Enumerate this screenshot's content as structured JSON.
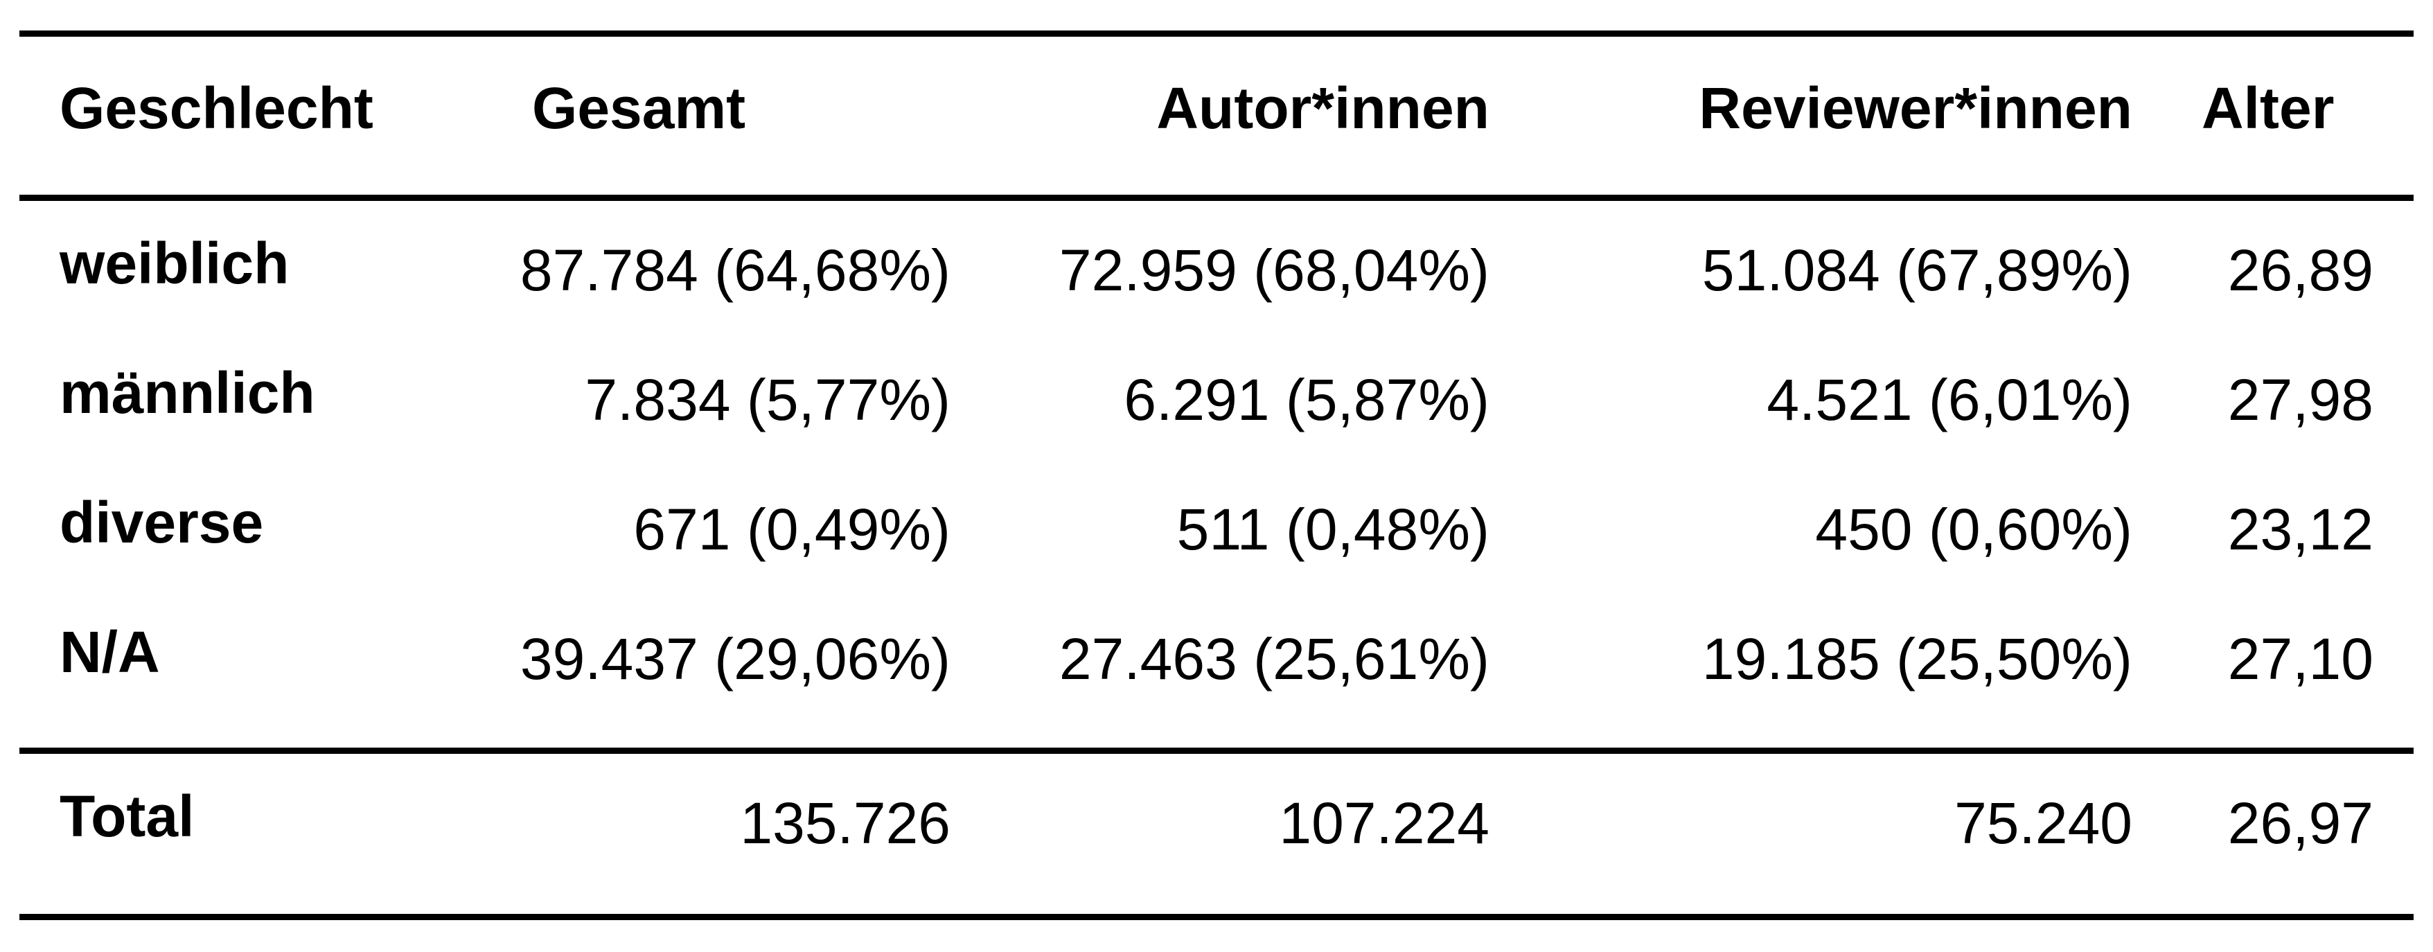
{
  "table": {
    "headers": [
      "Geschlecht",
      "Gesamt",
      "Autor*innen",
      "Reviewer*innen",
      "Alter"
    ],
    "rows": [
      {
        "label": "weiblich",
        "gesamt": "87.784 (64,68%)",
        "autoren": "72.959 (68,04%)",
        "reviewer": "51.084 (67,89%)",
        "alter": "26,89"
      },
      {
        "label": "männlich",
        "gesamt": "7.834 (5,77%)",
        "autoren": "6.291 (5,87%)",
        "reviewer": "4.521 (6,01%)",
        "alter": "27,98"
      },
      {
        "label": "diverse",
        "gesamt": "671 (0,49%)",
        "autoren": "511 (0,48%)",
        "reviewer": "450 (0,60%)",
        "alter": "23,12"
      },
      {
        "label": "N/A",
        "gesamt": "39.437 (29,06%)",
        "autoren": "27.463 (25,61%)",
        "reviewer": "19.185 (25,50%)",
        "alter": "27,10"
      }
    ],
    "total": {
      "label": "Total",
      "gesamt": "135.726",
      "autoren": "107.224",
      "reviewer": "75.240",
      "alter": "26,97"
    }
  }
}
